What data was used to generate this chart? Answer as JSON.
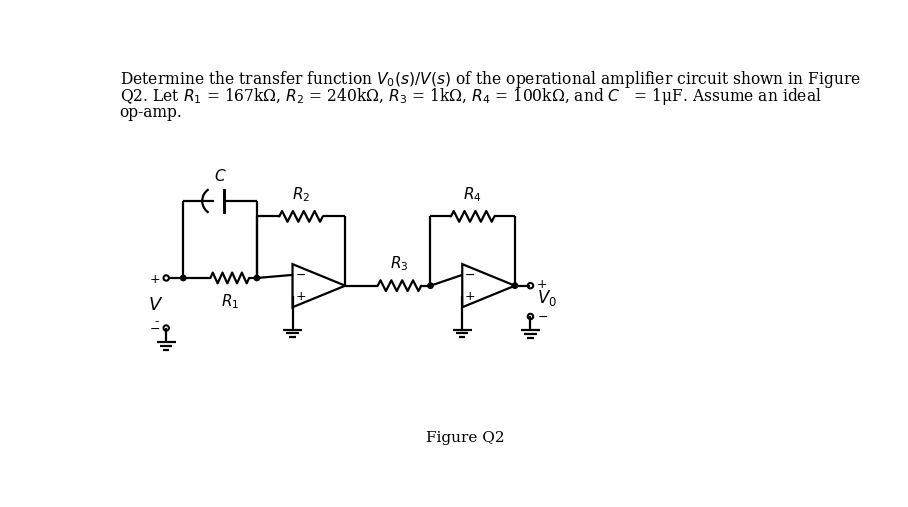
{
  "line1": "Determine the transfer function $V_0(s)/V(s)$ of the operational amplifier circuit shown in Figure",
  "line2": "Q2. Let $R_1$ = 167kΩ, $R_2$ = 240kΩ, $R_3$ = 1kΩ, $R_4$ = 100kΩ, and $C$   = 1μF. Assume an ideal",
  "line3": "op-amp.",
  "caption": "Figure Q2",
  "bg_color": "#ffffff",
  "text_color": "#000000",
  "fig_width": 9.08,
  "fig_height": 5.07,
  "dpi": 100
}
